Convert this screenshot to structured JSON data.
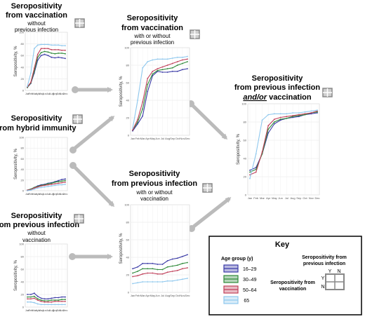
{
  "colors": {
    "16-29": "#3a3aa6",
    "30-49": "#2f8a3a",
    "50-64": "#c0405a",
    "65+": "#8fc8ee",
    "arrow": "#bbbbbb"
  },
  "icon": "quadrant-grid-icon",
  "months": [
    "Jan",
    "Feb",
    "Mar",
    "Apr",
    "May",
    "Jun",
    "Jul",
    "Aug",
    "Sep",
    "Oct",
    "Nov",
    "Dec"
  ],
  "panels": [
    {
      "id": "vacc-no-inf",
      "title": "Seropositivity",
      "title2": "from vaccination",
      "sub1": "without",
      "sub2": "previous infection",
      "sub_italic": "",
      "ylabel": "Seropositivity, %"
    },
    {
      "id": "hybrid",
      "title": "Seropositivity",
      "title2": "from hybrid immunity",
      "sub1": "",
      "sub2": "",
      "sub_italic": "",
      "ylabel": "Seropositivity, %"
    },
    {
      "id": "inf-no-vacc",
      "title": "Seropositivity",
      "title2": "from previous infection",
      "sub1": "without",
      "sub2": "vaccination",
      "sub_italic": "",
      "ylabel": "Seropositivity, %"
    },
    {
      "id": "vacc-any",
      "title": "Seropositivity",
      "title2": "from vaccination",
      "sub1": "with or without",
      "sub2": "previous infection",
      "sub_italic": "",
      "ylabel": "Seropositivity, %"
    },
    {
      "id": "inf-any",
      "title": "Seropositivity",
      "title2": "from previous infection",
      "sub1": "with or without",
      "sub2": "vaccination",
      "sub_italic": "",
      "ylabel": "Seropositivity, %"
    },
    {
      "id": "inf-or-vacc",
      "title": "Seropositivity",
      "title2": "from previous infection",
      "title3": "and/or",
      "title3b": " vaccination",
      "sub1": "",
      "sub2": "",
      "ylabel": "Seropositivity, %"
    }
  ],
  "key": {
    "title": "Key",
    "age_title": "Age group (y)",
    "groups": [
      "16–29",
      "30–49",
      "50–64",
      " 65"
    ],
    "grid_label_top1": "Seropositivity from",
    "grid_label_top2": "previous infection",
    "grid_y": "Y",
    "grid_n": "N",
    "grid_label_left1": "Seropositivity from",
    "grid_label_left2": "vaccination"
  },
  "chart_data": [
    {
      "type": "line",
      "panel": "vacc-no-inf",
      "x": [
        "Jan",
        "Feb",
        "Mar",
        "Apr",
        "May",
        "Jun",
        "Jul",
        "Aug",
        "Sep",
        "Oct",
        "Nov",
        "Dec"
      ],
      "ylim": [
        0,
        100
      ],
      "yticks": [
        0,
        20,
        40,
        60,
        80,
        100
      ],
      "series": [
        {
          "name": "16–29",
          "values": [
            5,
            12,
            30,
            52,
            60,
            62,
            60,
            57,
            56,
            57,
            56,
            55
          ]
        },
        {
          "name": "30–49",
          "values": [
            5,
            13,
            33,
            57,
            65,
            67,
            66,
            64,
            63,
            64,
            64,
            63
          ]
        },
        {
          "name": "50–64",
          "values": [
            6,
            14,
            38,
            62,
            72,
            72,
            72,
            70,
            70,
            70,
            69,
            69
          ]
        },
        {
          "name": "65+",
          "values": [
            7,
            30,
            72,
            78,
            79,
            79,
            79,
            78,
            78,
            78,
            77,
            77
          ]
        }
      ]
    },
    {
      "type": "line",
      "panel": "hybrid",
      "x": [
        "Jan",
        "Feb",
        "Mar",
        "Apr",
        "May",
        "Jun",
        "Jul",
        "Aug",
        "Sep",
        "Oct",
        "Nov",
        "Dec"
      ],
      "ylim": [
        0,
        100
      ],
      "yticks": [
        0,
        20,
        40,
        60,
        80,
        100
      ],
      "series": [
        {
          "name": "16–29",
          "values": [
            1,
            3,
            6,
            9,
            11,
            12,
            14,
            15,
            17,
            19,
            21,
            22
          ]
        },
        {
          "name": "30–49",
          "values": [
            1,
            3,
            6,
            8,
            10,
            11,
            13,
            14,
            16,
            17,
            18,
            19
          ]
        },
        {
          "name": "50–64",
          "values": [
            1,
            2,
            5,
            7,
            9,
            10,
            11,
            12,
            13,
            14,
            15,
            16
          ]
        },
        {
          "name": "65+",
          "values": [
            0,
            1,
            3,
            5,
            6,
            7,
            8,
            9,
            10,
            11,
            11,
            12
          ]
        }
      ]
    },
    {
      "type": "line",
      "panel": "inf-no-vacc",
      "x": [
        "Jan",
        "Feb",
        "Mar",
        "Apr",
        "May",
        "Jun",
        "Jul",
        "Aug",
        "Sep",
        "Oct",
        "Nov",
        "Dec"
      ],
      "ylim": [
        0,
        100
      ],
      "yticks": [
        0,
        20,
        40,
        60,
        80,
        100
      ],
      "series": [
        {
          "name": "16–29",
          "values": [
            20,
            20,
            22,
            17,
            14,
            13,
            13,
            14,
            15,
            15,
            16,
            16
          ]
        },
        {
          "name": "30–49",
          "values": [
            16,
            16,
            17,
            13,
            11,
            10,
            10,
            11,
            11,
            11,
            12,
            12
          ]
        },
        {
          "name": "50–64",
          "values": [
            13,
            13,
            14,
            11,
            9,
            8,
            8,
            8,
            9,
            9,
            9,
            9
          ]
        },
        {
          "name": "65+",
          "values": [
            8,
            8,
            7,
            5,
            4,
            4,
            4,
            4,
            4,
            4,
            4,
            4
          ]
        }
      ]
    },
    {
      "type": "line",
      "panel": "vacc-any",
      "x": [
        "Jan",
        "Feb",
        "Mar",
        "Apr",
        "May",
        "Jun",
        "Jul",
        "Aug",
        "Sep",
        "Oct",
        "Nov",
        "Dec"
      ],
      "ylim": [
        0,
        100
      ],
      "yticks": [
        0,
        20,
        40,
        60,
        80,
        100
      ],
      "series": [
        {
          "name": "16–29",
          "values": [
            5,
            13,
            22,
            50,
            68,
            73,
            72,
            72,
            73,
            73,
            75,
            76
          ]
        },
        {
          "name": "30–49",
          "values": [
            6,
            15,
            30,
            58,
            70,
            74,
            75,
            76,
            77,
            80,
            82,
            84
          ]
        },
        {
          "name": "50–64",
          "values": [
            6,
            18,
            38,
            65,
            73,
            76,
            78,
            80,
            82,
            84,
            86,
            87
          ]
        },
        {
          "name": "65+",
          "values": [
            8,
            40,
            77,
            84,
            86,
            87,
            87,
            87,
            88,
            89,
            89,
            90
          ]
        }
      ]
    },
    {
      "type": "line",
      "panel": "inf-any",
      "x": [
        "Jan",
        "Feb",
        "Mar",
        "Apr",
        "May",
        "Jun",
        "Jul",
        "Aug",
        "Sep",
        "Oct",
        "Nov",
        "Dec"
      ],
      "ylim": [
        0,
        100
      ],
      "yticks": [
        0,
        20,
        40,
        60,
        80,
        100
      ],
      "series": [
        {
          "name": "16–29",
          "values": [
            27,
            29,
            33,
            33,
            33,
            32,
            32,
            36,
            38,
            39,
            41,
            43
          ]
        },
        {
          "name": "30–49",
          "values": [
            22,
            24,
            27,
            27,
            27,
            26,
            26,
            29,
            30,
            31,
            33,
            34
          ]
        },
        {
          "name": "50–64",
          "values": [
            18,
            19,
            21,
            22,
            22,
            21,
            21,
            23,
            24,
            25,
            27,
            28
          ]
        },
        {
          "name": "65+",
          "values": [
            10,
            11,
            12,
            12,
            12,
            12,
            12,
            13,
            13,
            14,
            15,
            16
          ]
        }
      ]
    },
    {
      "type": "line",
      "panel": "inf-or-vacc",
      "x": [
        "Jan",
        "Feb",
        "Mar",
        "Apr",
        "May",
        "Jun",
        "Jul",
        "Aug",
        "Sep",
        "Oct",
        "Nov",
        "Dec"
      ],
      "ylim": [
        0,
        100
      ],
      "yticks": [
        0,
        20,
        40,
        60,
        80,
        100
      ],
      "series": [
        {
          "name": "16–29",
          "values": [
            27,
            30,
            45,
            68,
            78,
            82,
            84,
            85,
            86,
            88,
            89,
            90
          ]
        },
        {
          "name": "30–49",
          "values": [
            25,
            28,
            45,
            72,
            80,
            83,
            84,
            86,
            87,
            88,
            90,
            91
          ]
        },
        {
          "name": "50–64",
          "values": [
            22,
            25,
            47,
            76,
            83,
            85,
            86,
            87,
            88,
            89,
            90,
            92
          ]
        },
        {
          "name": "65+",
          "values": [
            18,
            45,
            82,
            88,
            89,
            89,
            89,
            90,
            90,
            91,
            92,
            93
          ]
        }
      ]
    }
  ]
}
